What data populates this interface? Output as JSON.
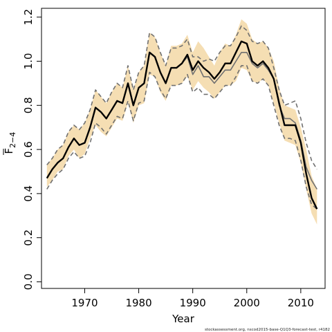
{
  "chart_data": {
    "type": "line",
    "xlabel": "Year",
    "ylabel_main": "F",
    "ylabel_sub": "2−4",
    "xlim": [
      1962,
      2014.5
    ],
    "ylim": [
      -0.03,
      1.24
    ],
    "xticks": [
      1970,
      1980,
      1990,
      2000,
      2010
    ],
    "yticks": [
      0.0,
      0.2,
      0.4,
      0.6,
      0.8,
      1.0,
      1.2
    ],
    "ytick_labels": [
      "0.0",
      "0.2",
      "0.4",
      "0.6",
      "0.8",
      "1.0",
      "1.2"
    ],
    "x": [
      1963,
      1964,
      1965,
      1966,
      1967,
      1968,
      1969,
      1970,
      1971,
      1972,
      1973,
      1974,
      1975,
      1976,
      1977,
      1978,
      1979,
      1980,
      1981,
      1982,
      1983,
      1984,
      1985,
      1986,
      1987,
      1988,
      1989,
      1990,
      1991,
      1992,
      1993,
      1994,
      1995,
      1996,
      1997,
      1998,
      1999,
      2000,
      2001,
      2002,
      2003,
      2004,
      2005,
      2006,
      2007,
      2008,
      2009,
      2010,
      2011,
      2012,
      2013
    ],
    "band_upper": [
      0.53,
      0.56,
      0.6,
      0.62,
      0.68,
      0.71,
      0.69,
      0.72,
      0.78,
      0.87,
      0.84,
      0.81,
      0.86,
      0.9,
      0.88,
      0.98,
      0.87,
      0.95,
      0.98,
      1.13,
      1.11,
      1.04,
      0.98,
      1.07,
      1.07,
      1.08,
      1.12,
      1.04,
      1.09,
      1.06,
      1.02,
      0.98,
      1.04,
      1.08,
      1.07,
      1.12,
      1.19,
      1.17,
      1.1,
      1.08,
      1.09,
      1.06,
      1.0,
      0.88,
      0.8,
      0.79,
      0.78,
      0.7,
      0.6,
      0.48,
      0.42
    ],
    "band_lower": [
      0.43,
      0.46,
      0.5,
      0.51,
      0.57,
      0.6,
      0.56,
      0.58,
      0.65,
      0.71,
      0.68,
      0.66,
      0.7,
      0.74,
      0.73,
      0.81,
      0.72,
      0.8,
      0.81,
      0.94,
      0.93,
      0.86,
      0.82,
      0.89,
      0.89,
      0.9,
      0.93,
      0.87,
      0.91,
      0.88,
      0.86,
      0.83,
      0.86,
      0.89,
      0.89,
      0.91,
      0.97,
      0.96,
      0.91,
      0.9,
      0.92,
      0.89,
      0.81,
      0.72,
      0.64,
      0.63,
      0.62,
      0.54,
      0.42,
      0.31,
      0.26
    ],
    "series": [
      {
        "name": "",
        "role": "estimate",
        "color": "#000000",
        "values": [
          0.47,
          0.51,
          0.54,
          0.56,
          0.61,
          0.65,
          0.62,
          0.63,
          0.7,
          0.79,
          0.77,
          0.74,
          0.78,
          0.82,
          0.81,
          0.9,
          0.8,
          0.88,
          0.9,
          1.04,
          1.02,
          0.95,
          0.9,
          0.97,
          0.97,
          0.99,
          1.03,
          0.96,
          1.0,
          0.97,
          0.95,
          0.92,
          0.95,
          0.99,
          0.99,
          1.04,
          1.09,
          1.08,
          1.0,
          0.98,
          1.0,
          0.97,
          0.92,
          0.81,
          0.71,
          0.71,
          0.71,
          0.63,
          0.49,
          0.38,
          0.33
        ]
      },
      {
        "name": "",
        "role": "retrospective-solid",
        "color": "#707070",
        "values": [
          0.47,
          0.51,
          0.54,
          0.56,
          0.61,
          0.65,
          0.62,
          0.63,
          0.7,
          0.79,
          0.77,
          0.74,
          0.78,
          0.82,
          0.81,
          0.9,
          0.8,
          0.88,
          0.9,
          1.04,
          1.02,
          0.95,
          0.9,
          0.97,
          0.97,
          0.99,
          1.02,
          0.94,
          0.98,
          0.93,
          0.93,
          0.9,
          0.93,
          0.96,
          0.96,
          1.0,
          1.04,
          1.04,
          0.99,
          0.97,
          0.99,
          0.96,
          0.92,
          0.8,
          0.74,
          0.74,
          0.72,
          0.64,
          0.52,
          0.46,
          0.42
        ]
      },
      {
        "name": "",
        "role": "retrospective-dashed-upper",
        "color": "#707070",
        "values": [
          0.53,
          0.56,
          0.6,
          0.62,
          0.68,
          0.71,
          0.69,
          0.72,
          0.78,
          0.87,
          0.84,
          0.81,
          0.86,
          0.9,
          0.88,
          0.98,
          0.87,
          0.95,
          0.98,
          1.13,
          1.11,
          1.04,
          0.98,
          1.06,
          1.06,
          1.07,
          1.1,
          1.02,
          1.02,
          1.0,
          1.01,
          1.0,
          1.04,
          1.07,
          1.07,
          1.11,
          1.16,
          1.14,
          1.09,
          1.08,
          1.09,
          1.06,
          0.97,
          0.87,
          0.8,
          0.81,
          0.82,
          0.74,
          0.63,
          0.55,
          0.51
        ]
      },
      {
        "name": "",
        "role": "retrospective-dashed-lower",
        "color": "#707070",
        "values": [
          0.42,
          0.46,
          0.49,
          0.51,
          0.56,
          0.59,
          0.56,
          0.57,
          0.63,
          0.72,
          0.7,
          0.67,
          0.71,
          0.75,
          0.74,
          0.82,
          0.73,
          0.81,
          0.82,
          0.95,
          0.93,
          0.87,
          0.83,
          0.89,
          0.89,
          0.9,
          0.94,
          0.86,
          0.88,
          0.85,
          0.85,
          0.83,
          0.86,
          0.89,
          0.89,
          0.93,
          0.98,
          0.98,
          0.91,
          0.9,
          0.92,
          0.89,
          0.8,
          0.71,
          0.65,
          0.65,
          0.64,
          0.55,
          0.43,
          0.35,
          0.33
        ]
      }
    ],
    "band_color": "#f5deb3",
    "grid": false,
    "legend": "none"
  },
  "footer_text": "stockassessment.org, nscod2015-base-Q1Q3-forecast-test, r4182"
}
